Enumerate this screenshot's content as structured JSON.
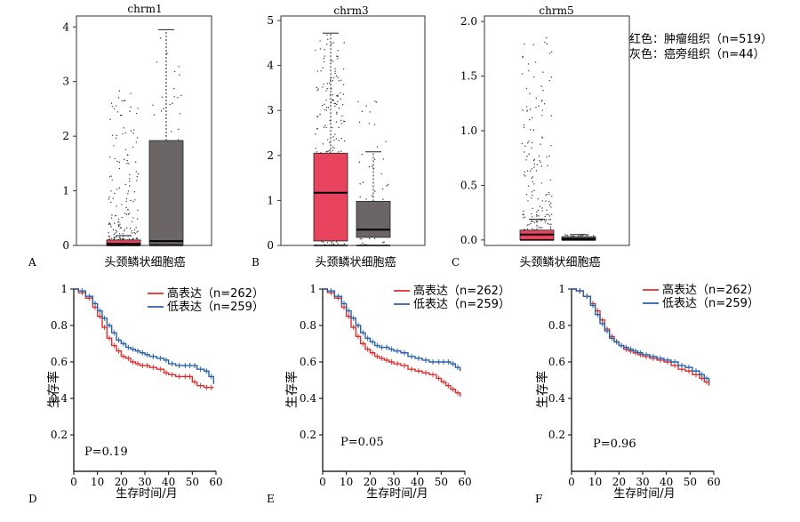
{
  "figure": {
    "legend_top": {
      "red_line": "红色：肿瘤组织（n=519）",
      "gray_line": "灰色：癌旁组织（n=44）"
    },
    "panels": [
      {
        "letter": "A",
        "title": "chrm1",
        "xlabel": "头颈鳞状细胞癌"
      },
      {
        "letter": "B",
        "title": "chrm3",
        "xlabel": "头颈鳞状细胞癌"
      },
      {
        "letter": "C",
        "title": "chrm5",
        "xlabel": "头颈鳞状细胞癌"
      },
      {
        "letter": "D",
        "pvalue": "P=0.19",
        "xlabel": "生存时间/月",
        "ylabel": "生存率",
        "legend": [
          "高表达（n=262）",
          "低表达（n=259）"
        ]
      },
      {
        "letter": "E",
        "pvalue": "P=0.05",
        "xlabel": "生存时间/月",
        "ylabel": "生存率",
        "legend": [
          "高表达（n=262）",
          "低表达（n=259）"
        ]
      },
      {
        "letter": "F",
        "pvalue": "P=0.96",
        "xlabel": "生存时间/月",
        "ylabel": "生存率",
        "legend": [
          "高表达（n=262）",
          "低表达（n=259）"
        ]
      }
    ]
  },
  "colors": {
    "tumor": "#e8445e",
    "normal": "#6b6565",
    "high": "#d8302e",
    "low": "#2a60a8"
  },
  "chart_data": [
    {
      "type": "box",
      "title": "chrm1",
      "xlabel": "头颈鳞状细胞癌",
      "ylim": [
        0,
        4.2
      ],
      "yticks": [
        0,
        1,
        2,
        3,
        4
      ],
      "boxes": [
        {
          "group": "tumor",
          "min": 0.0,
          "q1": 0.0,
          "median": 0.03,
          "q3": 0.1,
          "max": 0.18,
          "outlier_max": 2.85
        },
        {
          "group": "normal",
          "min": 0.0,
          "q1": 0.02,
          "median": 0.08,
          "q3": 1.92,
          "max": 3.95
        }
      ]
    },
    {
      "type": "box",
      "title": "chrm3",
      "xlabel": "头颈鳞状细胞癌",
      "ylim": [
        0,
        5.1
      ],
      "yticks": [
        0,
        1,
        2,
        3,
        4,
        5
      ],
      "boxes": [
        {
          "group": "tumor",
          "min": 0.0,
          "q1": 0.1,
          "median": 1.17,
          "q3": 2.05,
          "max": 4.72
        },
        {
          "group": "normal",
          "min": 0.0,
          "q1": 0.18,
          "median": 0.35,
          "q3": 0.98,
          "max": 2.08,
          "outlier_max": 3.4
        }
      ]
    },
    {
      "type": "box",
      "title": "chrm5",
      "xlabel": "头颈鳞状细胞癌",
      "ylim": [
        -0.05,
        2.05
      ],
      "yticks": [
        0.0,
        0.5,
        1.0,
        1.5,
        2.0
      ],
      "boxes": [
        {
          "group": "tumor",
          "min": 0.0,
          "q1": 0.0,
          "median": 0.05,
          "q3": 0.09,
          "max": 0.19,
          "outlier_max": 1.85
        },
        {
          "group": "normal",
          "min": 0.0,
          "q1": 0.0,
          "median": 0.01,
          "q3": 0.03,
          "max": 0.05
        }
      ]
    },
    {
      "type": "line",
      "xlim": [
        0,
        60
      ],
      "ylim": [
        0,
        1
      ],
      "xticks": [
        0,
        10,
        20,
        30,
        40,
        50,
        60
      ],
      "yticks": [
        0.2,
        0.4,
        0.6,
        0.8,
        1
      ],
      "series": [
        {
          "name": "高表达（n=262）",
          "x": [
            0,
            2,
            5,
            8,
            10,
            12,
            14,
            16,
            18,
            20,
            22,
            24,
            26,
            28,
            30,
            32,
            35,
            38,
            40,
            43,
            46,
            48,
            50,
            52,
            55,
            57,
            59
          ],
          "y": [
            1,
            0.98,
            0.95,
            0.9,
            0.85,
            0.79,
            0.73,
            0.69,
            0.66,
            0.63,
            0.62,
            0.6,
            0.59,
            0.58,
            0.58,
            0.57,
            0.56,
            0.54,
            0.53,
            0.52,
            0.52,
            0.52,
            0.49,
            0.47,
            0.46,
            0.46,
            0.46
          ]
        },
        {
          "name": "低表达（n=259）",
          "x": [
            0,
            2,
            5,
            8,
            10,
            12,
            14,
            16,
            18,
            20,
            22,
            24,
            26,
            28,
            30,
            32,
            35,
            38,
            40,
            43,
            46,
            48,
            50,
            52,
            55,
            57,
            59
          ],
          "y": [
            1,
            0.99,
            0.96,
            0.92,
            0.88,
            0.84,
            0.8,
            0.76,
            0.72,
            0.7,
            0.68,
            0.67,
            0.66,
            0.65,
            0.64,
            0.63,
            0.62,
            0.61,
            0.59,
            0.58,
            0.58,
            0.58,
            0.58,
            0.56,
            0.55,
            0.52,
            0.48
          ]
        }
      ]
    },
    {
      "type": "line",
      "xlim": [
        0,
        60
      ],
      "ylim": [
        0,
        1
      ],
      "xticks": [
        0,
        10,
        20,
        30,
        40,
        50,
        60
      ],
      "yticks": [
        0.2,
        0.4,
        0.6,
        0.8,
        1
      ],
      "series": [
        {
          "name": "高表达（n=262）",
          "x": [
            0,
            2,
            5,
            8,
            10,
            12,
            14,
            16,
            18,
            20,
            22,
            24,
            26,
            28,
            30,
            33,
            36,
            39,
            42,
            45,
            48,
            50,
            52,
            54,
            56,
            58
          ],
          "y": [
            1,
            0.98,
            0.95,
            0.9,
            0.85,
            0.79,
            0.74,
            0.7,
            0.67,
            0.65,
            0.63,
            0.62,
            0.61,
            0.6,
            0.59,
            0.58,
            0.56,
            0.55,
            0.54,
            0.53,
            0.51,
            0.49,
            0.47,
            0.45,
            0.43,
            0.41
          ]
        },
        {
          "name": "低表达（n=259）",
          "x": [
            0,
            2,
            5,
            8,
            10,
            12,
            14,
            16,
            18,
            20,
            22,
            24,
            26,
            28,
            30,
            33,
            36,
            39,
            42,
            45,
            48,
            50,
            52,
            54,
            56,
            58
          ],
          "y": [
            1,
            0.99,
            0.96,
            0.92,
            0.88,
            0.84,
            0.8,
            0.76,
            0.73,
            0.71,
            0.69,
            0.68,
            0.68,
            0.67,
            0.66,
            0.65,
            0.63,
            0.62,
            0.61,
            0.6,
            0.6,
            0.6,
            0.6,
            0.59,
            0.57,
            0.55
          ]
        }
      ]
    },
    {
      "type": "line",
      "xlim": [
        0,
        60
      ],
      "ylim": [
        0,
        1
      ],
      "xticks": [
        0,
        10,
        20,
        30,
        40,
        50,
        60
      ],
      "yticks": [
        0.2,
        0.4,
        0.6,
        0.8,
        1
      ],
      "series": [
        {
          "name": "高表达（n=262）",
          "x": [
            0,
            2,
            5,
            8,
            10,
            12,
            14,
            16,
            18,
            20,
            22,
            24,
            26,
            28,
            30,
            33,
            36,
            39,
            42,
            45,
            48,
            51,
            54,
            56,
            58
          ],
          "y": [
            1,
            0.99,
            0.96,
            0.92,
            0.88,
            0.83,
            0.78,
            0.74,
            0.71,
            0.69,
            0.67,
            0.66,
            0.65,
            0.64,
            0.63,
            0.62,
            0.61,
            0.6,
            0.58,
            0.56,
            0.55,
            0.53,
            0.51,
            0.49,
            0.47
          ]
        },
        {
          "name": "低表达（n=259）",
          "x": [
            0,
            2,
            5,
            8,
            10,
            12,
            14,
            16,
            18,
            20,
            22,
            24,
            26,
            28,
            30,
            33,
            36,
            39,
            42,
            45,
            48,
            51,
            54,
            56,
            58
          ],
          "y": [
            1,
            0.99,
            0.96,
            0.91,
            0.86,
            0.81,
            0.77,
            0.73,
            0.71,
            0.69,
            0.68,
            0.67,
            0.66,
            0.65,
            0.64,
            0.63,
            0.62,
            0.61,
            0.6,
            0.58,
            0.57,
            0.55,
            0.53,
            0.51,
            0.49
          ]
        }
      ]
    }
  ]
}
